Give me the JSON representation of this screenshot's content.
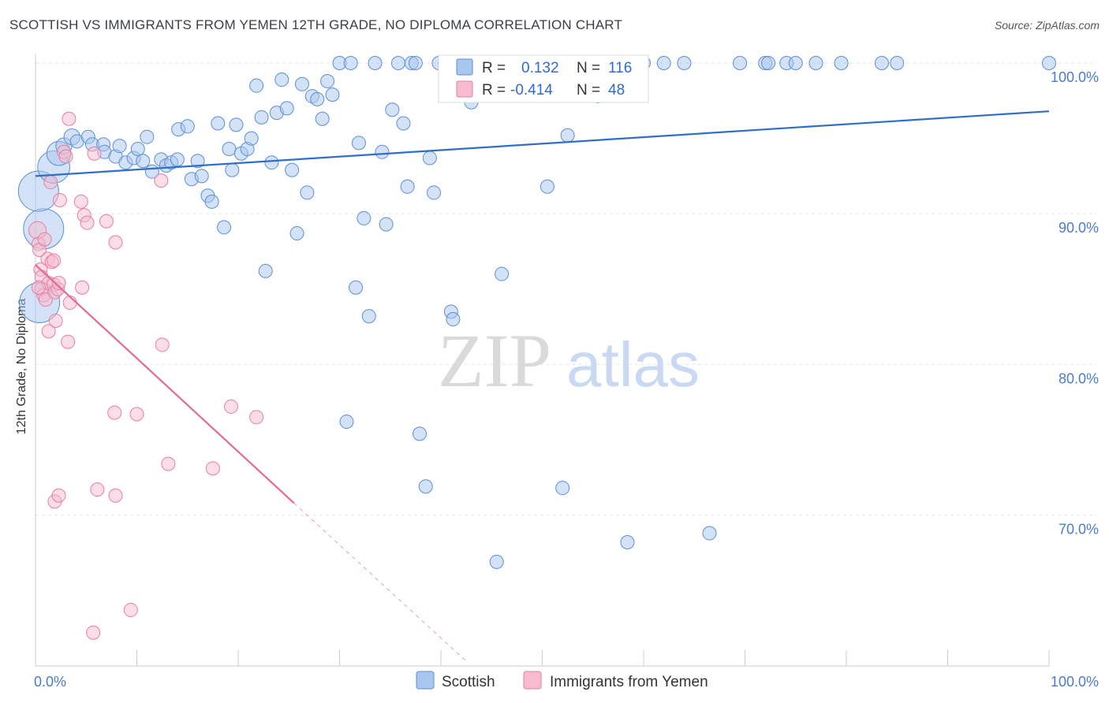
{
  "header": {
    "title": "SCOTTISH VS IMMIGRANTS FROM YEMEN 12TH GRADE, NO DIPLOMA CORRELATION CHART",
    "source": "Source: ZipAtlas.com"
  },
  "watermark": {
    "zip": "ZIP",
    "atlas": "atlas"
  },
  "colors": {
    "scottish_fill": "#a9c6ef",
    "scottish_stroke": "#5b8fd6",
    "scottish_line": "#2f6fc9",
    "yemen_fill": "#f6bccd",
    "yemen_stroke": "#e67fa1",
    "yemen_line": "#e26b95",
    "tick_text": "#4a7cc9",
    "grid": "#e3e6ea"
  },
  "legend": {
    "rows": [
      {
        "r_label": "R =",
        "r_value": "0.132",
        "n_label": "N =",
        "n_value": "116"
      },
      {
        "r_label": "R =",
        "r_value": "-0.414",
        "n_label": "N =",
        "n_value": "48"
      }
    ]
  },
  "chart_data": {
    "type": "scatter",
    "title": "SCOTTISH VS IMMIGRANTS FROM YEMEN 12TH GRADE, NO DIPLOMA CORRELATION CHART",
    "xlabel": "",
    "ylabel": "12th Grade, No Diploma",
    "xlim": [
      0,
      100
    ],
    "ylim": [
      60.3,
      101.5
    ],
    "x_tick_labels": [
      "0.0%",
      "100.0%"
    ],
    "y_ticks": [
      70,
      80,
      90,
      100
    ],
    "y_tick_labels": [
      "70.0%",
      "80.0%",
      "90.0%",
      "100.0%"
    ],
    "grid": true,
    "legend_position": "top-center",
    "series": [
      {
        "name": "Scottish",
        "r": 0.132,
        "n": 116,
        "trend": {
          "x": [
            0,
            100
          ],
          "y": [
            92.5,
            96.8
          ]
        },
        "points": [
          {
            "x": 0.4,
            "y": 84.1,
            "s": 3
          },
          {
            "x": 0.8,
            "y": 89.0,
            "s": 3
          },
          {
            "x": 0.3,
            "y": 91.5,
            "s": 3
          },
          {
            "x": 1.8,
            "y": 93.1,
            "s": 2.4
          },
          {
            "x": 2.3,
            "y": 94.0,
            "s": 1.8
          },
          {
            "x": 2.8,
            "y": 94.5,
            "s": 1.2
          },
          {
            "x": 3.6,
            "y": 95.1,
            "s": 1.2
          },
          {
            "x": 4.1,
            "y": 94.8,
            "s": 1
          },
          {
            "x": 5.2,
            "y": 95.1,
            "s": 1
          },
          {
            "x": 5.6,
            "y": 94.6,
            "s": 1
          },
          {
            "x": 6.7,
            "y": 94.6,
            "s": 1
          },
          {
            "x": 6.8,
            "y": 94.1,
            "s": 1
          },
          {
            "x": 7.9,
            "y": 93.8,
            "s": 1
          },
          {
            "x": 8.3,
            "y": 94.5,
            "s": 1
          },
          {
            "x": 8.9,
            "y": 93.4,
            "s": 1
          },
          {
            "x": 9.7,
            "y": 93.7,
            "s": 1
          },
          {
            "x": 10.1,
            "y": 94.3,
            "s": 1
          },
          {
            "x": 10.6,
            "y": 93.5,
            "s": 1
          },
          {
            "x": 11.0,
            "y": 95.1,
            "s": 1
          },
          {
            "x": 11.5,
            "y": 92.8,
            "s": 1
          },
          {
            "x": 12.4,
            "y": 93.6,
            "s": 1
          },
          {
            "x": 12.9,
            "y": 93.2,
            "s": 1
          },
          {
            "x": 13.4,
            "y": 93.4,
            "s": 1
          },
          {
            "x": 14.0,
            "y": 93.6,
            "s": 1
          },
          {
            "x": 14.1,
            "y": 95.6,
            "s": 1
          },
          {
            "x": 15.0,
            "y": 95.8,
            "s": 1
          },
          {
            "x": 15.4,
            "y": 92.3,
            "s": 1
          },
          {
            "x": 16.0,
            "y": 93.5,
            "s": 1
          },
          {
            "x": 16.4,
            "y": 92.5,
            "s": 1
          },
          {
            "x": 17.0,
            "y": 91.2,
            "s": 1
          },
          {
            "x": 17.4,
            "y": 90.8,
            "s": 1
          },
          {
            "x": 18.0,
            "y": 96.0,
            "s": 1
          },
          {
            "x": 18.6,
            "y": 89.1,
            "s": 1
          },
          {
            "x": 19.1,
            "y": 94.3,
            "s": 1
          },
          {
            "x": 19.4,
            "y": 92.9,
            "s": 1
          },
          {
            "x": 19.8,
            "y": 95.9,
            "s": 1
          },
          {
            "x": 20.3,
            "y": 94.0,
            "s": 1
          },
          {
            "x": 20.9,
            "y": 94.3,
            "s": 1
          },
          {
            "x": 21.3,
            "y": 95.0,
            "s": 1
          },
          {
            "x": 21.8,
            "y": 98.5,
            "s": 1
          },
          {
            "x": 22.3,
            "y": 96.4,
            "s": 1
          },
          {
            "x": 22.7,
            "y": 86.2,
            "s": 1
          },
          {
            "x": 23.3,
            "y": 93.4,
            "s": 1
          },
          {
            "x": 23.8,
            "y": 96.7,
            "s": 1
          },
          {
            "x": 24.3,
            "y": 98.9,
            "s": 1
          },
          {
            "x": 24.8,
            "y": 97.0,
            "s": 1
          },
          {
            "x": 25.3,
            "y": 92.9,
            "s": 1
          },
          {
            "x": 25.8,
            "y": 88.7,
            "s": 1
          },
          {
            "x": 26.3,
            "y": 98.6,
            "s": 1
          },
          {
            "x": 26.8,
            "y": 91.4,
            "s": 1
          },
          {
            "x": 27.3,
            "y": 97.8,
            "s": 1
          },
          {
            "x": 27.8,
            "y": 97.6,
            "s": 1
          },
          {
            "x": 28.3,
            "y": 96.3,
            "s": 1
          },
          {
            "x": 28.8,
            "y": 98.8,
            "s": 1
          },
          {
            "x": 29.3,
            "y": 97.9,
            "s": 1
          },
          {
            "x": 30.0,
            "y": 100.0,
            "s": 1
          },
          {
            "x": 31.1,
            "y": 100.0,
            "s": 1
          },
          {
            "x": 31.6,
            "y": 85.1,
            "s": 1
          },
          {
            "x": 31.9,
            "y": 94.7,
            "s": 1
          },
          {
            "x": 32.4,
            "y": 89.7,
            "s": 1
          },
          {
            "x": 32.9,
            "y": 83.2,
            "s": 1
          },
          {
            "x": 33.5,
            "y": 100.0,
            "s": 1
          },
          {
            "x": 34.2,
            "y": 94.1,
            "s": 1
          },
          {
            "x": 34.6,
            "y": 89.3,
            "s": 1
          },
          {
            "x": 35.2,
            "y": 96.9,
            "s": 1
          },
          {
            "x": 35.8,
            "y": 100.0,
            "s": 1
          },
          {
            "x": 36.3,
            "y": 96.0,
            "s": 1
          },
          {
            "x": 36.7,
            "y": 91.8,
            "s": 1
          },
          {
            "x": 37.1,
            "y": 100.0,
            "s": 1
          },
          {
            "x": 37.5,
            "y": 100.0,
            "s": 1
          },
          {
            "x": 37.9,
            "y": 75.4,
            "s": 1
          },
          {
            "x": 38.5,
            "y": 71.9,
            "s": 1
          },
          {
            "x": 38.9,
            "y": 93.7,
            "s": 1
          },
          {
            "x": 39.3,
            "y": 91.4,
            "s": 1
          },
          {
            "x": 39.8,
            "y": 100.0,
            "s": 1
          },
          {
            "x": 40.4,
            "y": 100.0,
            "s": 1
          },
          {
            "x": 41.0,
            "y": 83.5,
            "s": 1
          },
          {
            "x": 41.2,
            "y": 83.0,
            "s": 1
          },
          {
            "x": 41.9,
            "y": 100.0,
            "s": 1
          },
          {
            "x": 43.0,
            "y": 97.4,
            "s": 1
          },
          {
            "x": 44.0,
            "y": 99.5,
            "s": 1
          },
          {
            "x": 45.0,
            "y": 100.0,
            "s": 1
          },
          {
            "x": 46.0,
            "y": 86.0,
            "s": 1
          },
          {
            "x": 47.0,
            "y": 98.2,
            "s": 1
          },
          {
            "x": 48.0,
            "y": 100.0,
            "s": 1
          },
          {
            "x": 49.0,
            "y": 100.0,
            "s": 1
          },
          {
            "x": 50.2,
            "y": 100.0,
            "s": 1
          },
          {
            "x": 50.5,
            "y": 91.8,
            "s": 1
          },
          {
            "x": 51.3,
            "y": 100.0,
            "s": 1
          },
          {
            "x": 52.0,
            "y": 71.8,
            "s": 1
          },
          {
            "x": 52.5,
            "y": 95.2,
            "s": 1
          },
          {
            "x": 54.0,
            "y": 100.0,
            "s": 1
          },
          {
            "x": 55.5,
            "y": 97.8,
            "s": 1
          },
          {
            "x": 56.0,
            "y": 100.0,
            "s": 1
          },
          {
            "x": 58.0,
            "y": 100.0,
            "s": 1
          },
          {
            "x": 60.0,
            "y": 100.0,
            "s": 1
          },
          {
            "x": 58.4,
            "y": 68.2,
            "s": 1
          },
          {
            "x": 45.5,
            "y": 66.9,
            "s": 1
          },
          {
            "x": 30.7,
            "y": 76.2,
            "s": 1
          },
          {
            "x": 62.0,
            "y": 100.0,
            "s": 1
          },
          {
            "x": 64.0,
            "y": 100.0,
            "s": 1
          },
          {
            "x": 66.5,
            "y": 68.8,
            "s": 1
          },
          {
            "x": 69.5,
            "y": 100.0,
            "s": 1
          },
          {
            "x": 72.0,
            "y": 100.0,
            "s": 1
          },
          {
            "x": 72.3,
            "y": 100.0,
            "s": 1
          },
          {
            "x": 74.1,
            "y": 100.0,
            "s": 1
          },
          {
            "x": 75.0,
            "y": 100.0,
            "s": 1
          },
          {
            "x": 77.0,
            "y": 100.0,
            "s": 1
          },
          {
            "x": 79.5,
            "y": 100.0,
            "s": 1
          },
          {
            "x": 83.5,
            "y": 100.0,
            "s": 1
          },
          {
            "x": 85.0,
            "y": 100.0,
            "s": 1
          },
          {
            "x": 100.0,
            "y": 100.0,
            "s": 1
          }
        ]
      },
      {
        "name": "Immigrants from Yemen",
        "r": -0.414,
        "n": 48,
        "trend": {
          "x": [
            0,
            25.5
          ],
          "y": [
            86.6,
            70.8
          ]
        },
        "trend_dashed": {
          "x": [
            25.5,
            42.5
          ],
          "y": [
            70.8,
            60.3
          ]
        },
        "points": [
          {
            "x": 0.2,
            "y": 88.9,
            "s": 1.3
          },
          {
            "x": 0.3,
            "y": 88.0,
            "s": 1
          },
          {
            "x": 0.4,
            "y": 87.6,
            "s": 1
          },
          {
            "x": 0.5,
            "y": 86.3,
            "s": 1
          },
          {
            "x": 0.6,
            "y": 85.8,
            "s": 1
          },
          {
            "x": 0.6,
            "y": 85.0,
            "s": 1
          },
          {
            "x": 0.8,
            "y": 84.6,
            "s": 1
          },
          {
            "x": 0.9,
            "y": 88.3,
            "s": 1
          },
          {
            "x": 1.0,
            "y": 84.3,
            "s": 1
          },
          {
            "x": 1.2,
            "y": 87.0,
            "s": 1
          },
          {
            "x": 1.3,
            "y": 85.4,
            "s": 1
          },
          {
            "x": 1.3,
            "y": 82.2,
            "s": 1
          },
          {
            "x": 1.5,
            "y": 92.1,
            "s": 1
          },
          {
            "x": 1.6,
            "y": 86.8,
            "s": 1
          },
          {
            "x": 1.8,
            "y": 86.9,
            "s": 1
          },
          {
            "x": 1.8,
            "y": 85.3,
            "s": 1
          },
          {
            "x": 1.9,
            "y": 84.8,
            "s": 1
          },
          {
            "x": 2.0,
            "y": 82.9,
            "s": 1
          },
          {
            "x": 2.2,
            "y": 85.0,
            "s": 1
          },
          {
            "x": 2.3,
            "y": 85.4,
            "s": 1
          },
          {
            "x": 2.4,
            "y": 90.9,
            "s": 1
          },
          {
            "x": 2.8,
            "y": 94.1,
            "s": 1
          },
          {
            "x": 3.0,
            "y": 93.8,
            "s": 1
          },
          {
            "x": 3.2,
            "y": 81.5,
            "s": 1
          },
          {
            "x": 3.3,
            "y": 96.3,
            "s": 1
          },
          {
            "x": 3.4,
            "y": 84.1,
            "s": 1
          },
          {
            "x": 4.5,
            "y": 90.8,
            "s": 1
          },
          {
            "x": 4.6,
            "y": 85.1,
            "s": 1
          },
          {
            "x": 4.8,
            "y": 89.9,
            "s": 1
          },
          {
            "x": 5.1,
            "y": 89.4,
            "s": 1
          },
          {
            "x": 5.8,
            "y": 94.0,
            "s": 1
          },
          {
            "x": 7.0,
            "y": 89.5,
            "s": 1
          },
          {
            "x": 7.9,
            "y": 88.1,
            "s": 1
          },
          {
            "x": 7.8,
            "y": 76.8,
            "s": 1
          },
          {
            "x": 10.0,
            "y": 76.7,
            "s": 1
          },
          {
            "x": 12.4,
            "y": 92.2,
            "s": 1
          },
          {
            "x": 12.5,
            "y": 81.3,
            "s": 1
          },
          {
            "x": 13.1,
            "y": 73.4,
            "s": 1
          },
          {
            "x": 17.5,
            "y": 73.1,
            "s": 1
          },
          {
            "x": 19.3,
            "y": 77.2,
            "s": 1
          },
          {
            "x": 21.8,
            "y": 76.5,
            "s": 1
          },
          {
            "x": 6.1,
            "y": 71.7,
            "s": 1
          },
          {
            "x": 7.9,
            "y": 71.3,
            "s": 1
          },
          {
            "x": 1.9,
            "y": 70.9,
            "s": 1
          },
          {
            "x": 2.3,
            "y": 71.3,
            "s": 1
          },
          {
            "x": 9.4,
            "y": 63.7,
            "s": 1
          },
          {
            "x": 5.7,
            "y": 62.2,
            "s": 1
          },
          {
            "x": 0.3,
            "y": 85.1,
            "s": 1
          }
        ]
      }
    ]
  }
}
